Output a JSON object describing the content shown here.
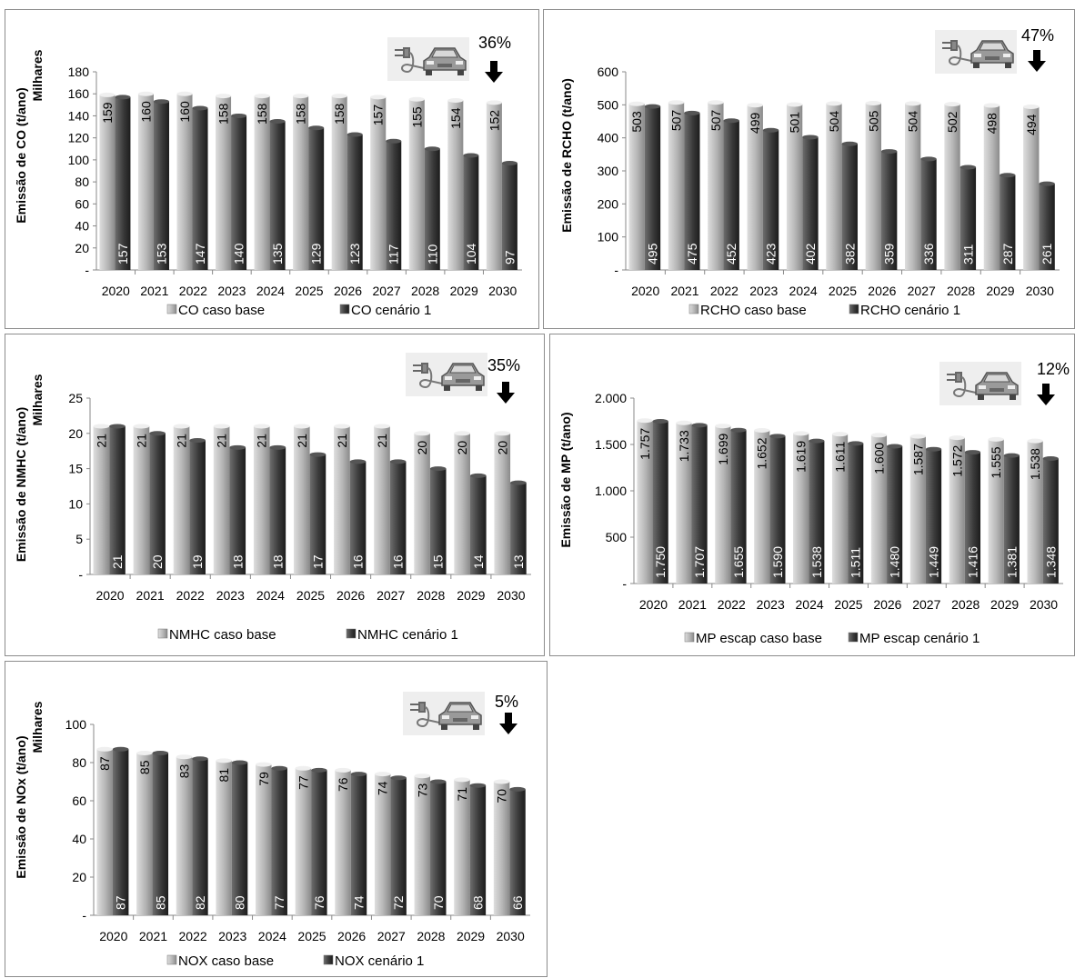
{
  "colors": {
    "base_light": "#dedede",
    "base_mid": "#b5b5b5",
    "base_dark": "#8a8a8a",
    "cen_light": "#6e6e6e",
    "cen_mid": "#3a3a3a",
    "cen_dark": "#1c1c1c"
  },
  "charts": [
    {
      "ylabel": "Emissão de CO (t/ano)",
      "unit": "Milhares",
      "reduction": "36%",
      "yticks": [
        "-",
        "20",
        "40",
        "60",
        "80",
        "100",
        "120",
        "140",
        "160",
        "180"
      ],
      "xticks": [
        "2020",
        "2021",
        "2022",
        "2023",
        "2024",
        "2025",
        "2026",
        "2027",
        "2028",
        "2029",
        "2030"
      ],
      "legend": [
        "CO caso base",
        "CO cenário 1"
      ],
      "base_labels": [
        "159",
        "160",
        "160",
        "158",
        "158",
        "158",
        "158",
        "157",
        "155",
        "154",
        "152"
      ],
      "cen_labels": [
        "157",
        "153",
        "147",
        "140",
        "135",
        "129",
        "123",
        "117",
        "110",
        "104",
        "97"
      ]
    },
    {
      "ylabel": "Emissão de RCHO (t/ano)",
      "unit": "",
      "reduction": "47%",
      "yticks": [
        "-",
        "100",
        "200",
        "300",
        "400",
        "500",
        "600"
      ],
      "xticks": [
        "2020",
        "2021",
        "2022",
        "2023",
        "2024",
        "2025",
        "2026",
        "2027",
        "2028",
        "2029",
        "2030"
      ],
      "legend": [
        "RCHO caso base",
        "RCHO cenário 1"
      ],
      "base_labels": [
        "503",
        "507",
        "507",
        "499",
        "501",
        "504",
        "505",
        "504",
        "502",
        "498",
        "494"
      ],
      "cen_labels": [
        "495",
        "475",
        "452",
        "423",
        "402",
        "382",
        "359",
        "336",
        "311",
        "287",
        "261"
      ]
    },
    {
      "ylabel": "Emissão de NMHC (t/ano)",
      "unit": "Milhares",
      "reduction": "35%",
      "yticks": [
        "-",
        "5",
        "10",
        "15",
        "20",
        "25"
      ],
      "xticks": [
        "2020",
        "2021",
        "2022",
        "2023",
        "2024",
        "2025",
        "2026",
        "2027",
        "2028",
        "2029",
        "2030"
      ],
      "legend": [
        "NMHC caso base",
        "NMHC cenário 1"
      ],
      "base_labels": [
        "21",
        "21",
        "21",
        "21",
        "21",
        "21",
        "21",
        "21",
        "20",
        "20",
        "20"
      ],
      "cen_labels": [
        "21",
        "20",
        "19",
        "18",
        "18",
        "17",
        "16",
        "16",
        "15",
        "14",
        "13"
      ]
    },
    {
      "ylabel": "Emissão de MP (t/ano)",
      "unit": "",
      "reduction": "12%",
      "yticks": [
        "-",
        "500",
        "1.000",
        "1.500",
        "2.000"
      ],
      "xticks": [
        "2020",
        "2021",
        "2022",
        "2023",
        "2024",
        "2025",
        "2026",
        "2027",
        "2028",
        "2029",
        "2030"
      ],
      "legend": [
        "MP escap caso base",
        "MP escap cenário 1"
      ],
      "base_labels": [
        "1.757",
        "1.733",
        "1.699",
        "1.652",
        "1.619",
        "1.611",
        "1.600",
        "1.587",
        "1.572",
        "1.555",
        "1.538"
      ],
      "cen_labels": [
        "1.750",
        "1.707",
        "1.655",
        "1.590",
        "1.538",
        "1.511",
        "1.480",
        "1.449",
        "1.416",
        "1.381",
        "1.348"
      ]
    },
    {
      "ylabel": "Emissão de NOx (t/ano)",
      "unit": "Milhares",
      "reduction": "5%",
      "yticks": [
        "-",
        "20",
        "40",
        "60",
        "80",
        "100"
      ],
      "xticks": [
        "2020",
        "2021",
        "2022",
        "2023",
        "2024",
        "2025",
        "2026",
        "2027",
        "2028",
        "2029",
        "2030"
      ],
      "legend": [
        "NOX caso base",
        "NOX cenário 1"
      ],
      "base_labels": [
        "87",
        "85",
        "83",
        "81",
        "79",
        "77",
        "76",
        "74",
        "73",
        "71",
        "70"
      ],
      "cen_labels": [
        "87",
        "85",
        "82",
        "80",
        "77",
        "76",
        "74",
        "72",
        "70",
        "68",
        "66"
      ]
    }
  ],
  "chart_data": [
    {
      "type": "bar",
      "categories": [
        "2020",
        "2021",
        "2022",
        "2023",
        "2024",
        "2025",
        "2026",
        "2027",
        "2028",
        "2029",
        "2030"
      ],
      "series": [
        {
          "name": "CO caso base",
          "values": [
            159,
            160,
            160,
            158,
            158,
            158,
            158,
            157,
            155,
            154,
            152
          ]
        },
        {
          "name": "CO cenário 1",
          "values": [
            157,
            153,
            147,
            140,
            135,
            129,
            123,
            117,
            110,
            104,
            97
          ]
        }
      ],
      "ylabel": "Emissão de CO (t/ano)",
      "unit": "Milhares",
      "ylim": [
        0,
        180
      ],
      "ystep": 20,
      "annotation": "36%",
      "legend_position": "bottom",
      "grid": false
    },
    {
      "type": "bar",
      "categories": [
        "2020",
        "2021",
        "2022",
        "2023",
        "2024",
        "2025",
        "2026",
        "2027",
        "2028",
        "2029",
        "2030"
      ],
      "series": [
        {
          "name": "RCHO caso base",
          "values": [
            503,
            507,
            507,
            499,
            501,
            504,
            505,
            504,
            502,
            498,
            494
          ]
        },
        {
          "name": "RCHO cenário 1",
          "values": [
            495,
            475,
            452,
            423,
            402,
            382,
            359,
            336,
            311,
            287,
            261
          ]
        }
      ],
      "ylabel": "Emissão de RCHO (t/ano)",
      "ylim": [
        0,
        600
      ],
      "ystep": 100,
      "annotation": "47%",
      "legend_position": "bottom",
      "grid": false
    },
    {
      "type": "bar",
      "categories": [
        "2020",
        "2021",
        "2022",
        "2023",
        "2024",
        "2025",
        "2026",
        "2027",
        "2028",
        "2029",
        "2030"
      ],
      "series": [
        {
          "name": "NMHC caso base",
          "values": [
            21,
            21,
            21,
            21,
            21,
            21,
            21,
            21,
            20,
            20,
            20
          ]
        },
        {
          "name": "NMHC cenário 1",
          "values": [
            21,
            20,
            19,
            18,
            18,
            17,
            16,
            16,
            15,
            14,
            13
          ]
        }
      ],
      "ylabel": "Emissão de NMHC (t/ano)",
      "unit": "Milhares",
      "ylim": [
        0,
        25
      ],
      "ystep": 5,
      "annotation": "35%",
      "legend_position": "bottom",
      "grid": false
    },
    {
      "type": "bar",
      "categories": [
        "2020",
        "2021",
        "2022",
        "2023",
        "2024",
        "2025",
        "2026",
        "2027",
        "2028",
        "2029",
        "2030"
      ],
      "series": [
        {
          "name": "MP escap caso base",
          "values": [
            1757,
            1733,
            1699,
            1652,
            1619,
            1611,
            1600,
            1587,
            1572,
            1555,
            1538
          ]
        },
        {
          "name": "MP escap cenário 1",
          "values": [
            1750,
            1707,
            1655,
            1590,
            1538,
            1511,
            1480,
            1449,
            1416,
            1381,
            1348
          ]
        }
      ],
      "ylabel": "Emissão de MP (t/ano)",
      "ylim": [
        0,
        2000
      ],
      "ystep": 500,
      "annotation": "12%",
      "legend_position": "bottom",
      "grid": false
    },
    {
      "type": "bar",
      "categories": [
        "2020",
        "2021",
        "2022",
        "2023",
        "2024",
        "2025",
        "2026",
        "2027",
        "2028",
        "2029",
        "2030"
      ],
      "series": [
        {
          "name": "NOX caso base",
          "values": [
            87,
            85,
            83,
            81,
            79,
            77,
            76,
            74,
            73,
            71,
            70
          ]
        },
        {
          "name": "NOX cenário 1",
          "values": [
            87,
            85,
            82,
            80,
            77,
            76,
            74,
            72,
            70,
            68,
            66
          ]
        }
      ],
      "ylabel": "Emissão de NOx (t/ano)",
      "unit": "Milhares",
      "ylim": [
        0,
        100
      ],
      "ystep": 20,
      "annotation": "5%",
      "legend_position": "bottom",
      "grid": false
    }
  ]
}
